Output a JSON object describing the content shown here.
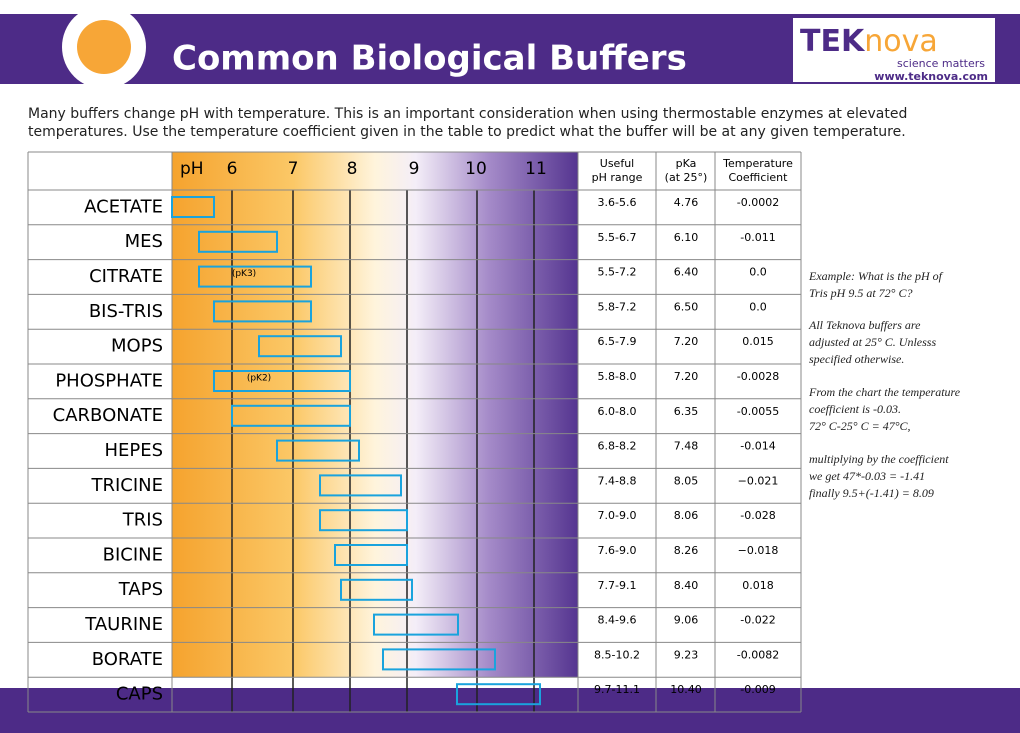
{
  "header": {
    "title": "Common Biological Buffers",
    "logo": {
      "brand_a": "TEK",
      "brand_b": "nova",
      "tagline": "science matters",
      "url": "www.teknova.com"
    }
  },
  "intro": [
    "Many buffers change pH with temperature. This is an important consideration when using thermostable enzymes at elevated",
    "temperatures.  Use the temperature coefficient given in the table to predict what the buffer will be at any given temperature."
  ],
  "table": {
    "ph_label": "pH",
    "ph_ticks": [
      "6",
      "7",
      "8",
      "9",
      "10",
      "11"
    ],
    "columns": [
      [
        "Useful",
        "pH range"
      ],
      [
        "pKa",
        "(at 25°)"
      ],
      [
        "Temperature",
        "Coefficient"
      ]
    ],
    "rows": [
      {
        "name": "ACETATE",
        "range": "3.6-5.6",
        "pka": "4.76",
        "coef": "-0.0002"
      },
      {
        "name": "MES",
        "range": "5.5-6.7",
        "pka": "6.10",
        "coef": "-0.011"
      },
      {
        "name": "CITRATE",
        "note": "(pK3)",
        "range": "5.5-7.2",
        "pka": "6.40",
        "coef": "0.0"
      },
      {
        "name": "BIS-TRIS",
        "range": "5.8-7.2",
        "pka": "6.50",
        "coef": "0.0"
      },
      {
        "name": "MOPS",
        "range": "6.5-7.9",
        "pka": "7.20",
        "coef": "0.015"
      },
      {
        "name": "PHOSPHATE",
        "note": "(pK2)",
        "range": "5.8-8.0",
        "pka": "7.20",
        "coef": "-0.0028"
      },
      {
        "name": "CARBONATE",
        "range": "6.0-8.0",
        "pka": "6.35",
        "coef": "-0.0055"
      },
      {
        "name": "HEPES",
        "range": "6.8-8.2",
        "pka": "7.48",
        "coef": "-0.014"
      },
      {
        "name": "TRICINE",
        "range": "7.4-8.8",
        "pka": "8.05",
        "coef": "−0.021"
      },
      {
        "name": "TRIS",
        "range": "7.0-9.0",
        "pka": "8.06",
        "coef": "-0.028"
      },
      {
        "name": "BICINE",
        "range": "7.6-9.0",
        "pka": "8.26",
        "coef": "−0.018"
      },
      {
        "name": "TAPS",
        "range": "7.7-9.1",
        "pka": "8.40",
        "coef": "0.018"
      },
      {
        "name": "TAURINE",
        "range": "8.4-9.6",
        "pka": "9.06",
        "coef": "-0.022"
      },
      {
        "name": "BORATE",
        "range": "8.5-10.2",
        "pka": "9.23",
        "coef": "-0.0082"
      },
      {
        "name": "CAPS",
        "range": "9.7-11.1",
        "pka": "10.40",
        "coef": "-0.009"
      }
    ]
  },
  "notes": [
    [
      "Example: What is the pH of",
      "Tris pH 9.5 at 72° C?"
    ],
    [
      "All Teknova buffers are",
      "adjusted at 25° C.  Unlesss",
      "specified otherwise."
    ],
    [
      "From the chart the temperature",
      "coefficient is -0.03.",
      "72° C-25° C = 47°C,"
    ],
    [
      "multiplying by the coefficient",
      "we get 47*-0.03 = -1.41",
      "finally 9.5+(-1.41) = 8.09"
    ]
  ]
}
